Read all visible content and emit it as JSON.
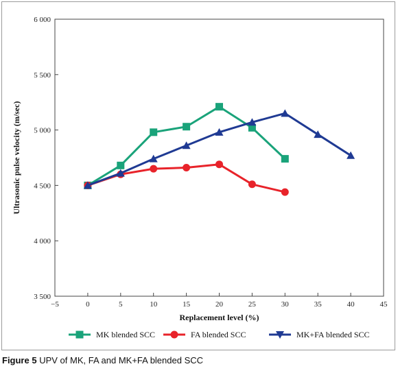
{
  "chart_data": {
    "type": "line",
    "x": [
      0,
      5,
      10,
      15,
      20,
      25,
      30,
      35,
      40
    ],
    "series": [
      {
        "name": "MK blended SCC",
        "color": "#1aa37a",
        "marker": "square",
        "x": [
          0,
          5,
          10,
          15,
          20,
          25,
          30
        ],
        "values": [
          4500,
          4680,
          4980,
          5030,
          5210,
          5020,
          4740
        ]
      },
      {
        "name": "FA blended SCC",
        "color": "#e8232a",
        "marker": "circle",
        "x": [
          0,
          5,
          10,
          15,
          20,
          25,
          30
        ],
        "values": [
          4500,
          4600,
          4650,
          4660,
          4690,
          4510,
          4440
        ]
      },
      {
        "name": "MK+FA blended SCC",
        "color": "#1f3a93",
        "marker": "triangle-down",
        "x": [
          0,
          5,
          10,
          15,
          20,
          25,
          30,
          35,
          40
        ],
        "values": [
          4500,
          4610,
          4740,
          4860,
          4980,
          5070,
          5150,
          4960,
          4770
        ]
      }
    ],
    "xlabel": "Replacement level (%)",
    "ylabel": "Ultrasonic pulse velocity (m/sec)",
    "xlim": [
      -5,
      45
    ],
    "ylim": [
      3500,
      6000
    ],
    "xticks": [
      -5,
      0,
      5,
      10,
      15,
      20,
      25,
      30,
      35,
      40,
      45
    ],
    "xtick_labels": [
      "−5",
      "0",
      "5",
      "10",
      "15",
      "20",
      "25",
      "30",
      "35",
      "40",
      "45"
    ],
    "yticks": [
      3500,
      4000,
      4500,
      5000,
      5500,
      6000
    ],
    "ytick_labels": [
      "3 500",
      "4 000",
      "4 500",
      "5 000",
      "5 500",
      "6 000"
    ],
    "grid": false,
    "legend_placement": "bottom"
  },
  "caption": {
    "figure_label": "Figure 5",
    "text": "UPV of MK, FA and MK+FA blended SCC"
  }
}
